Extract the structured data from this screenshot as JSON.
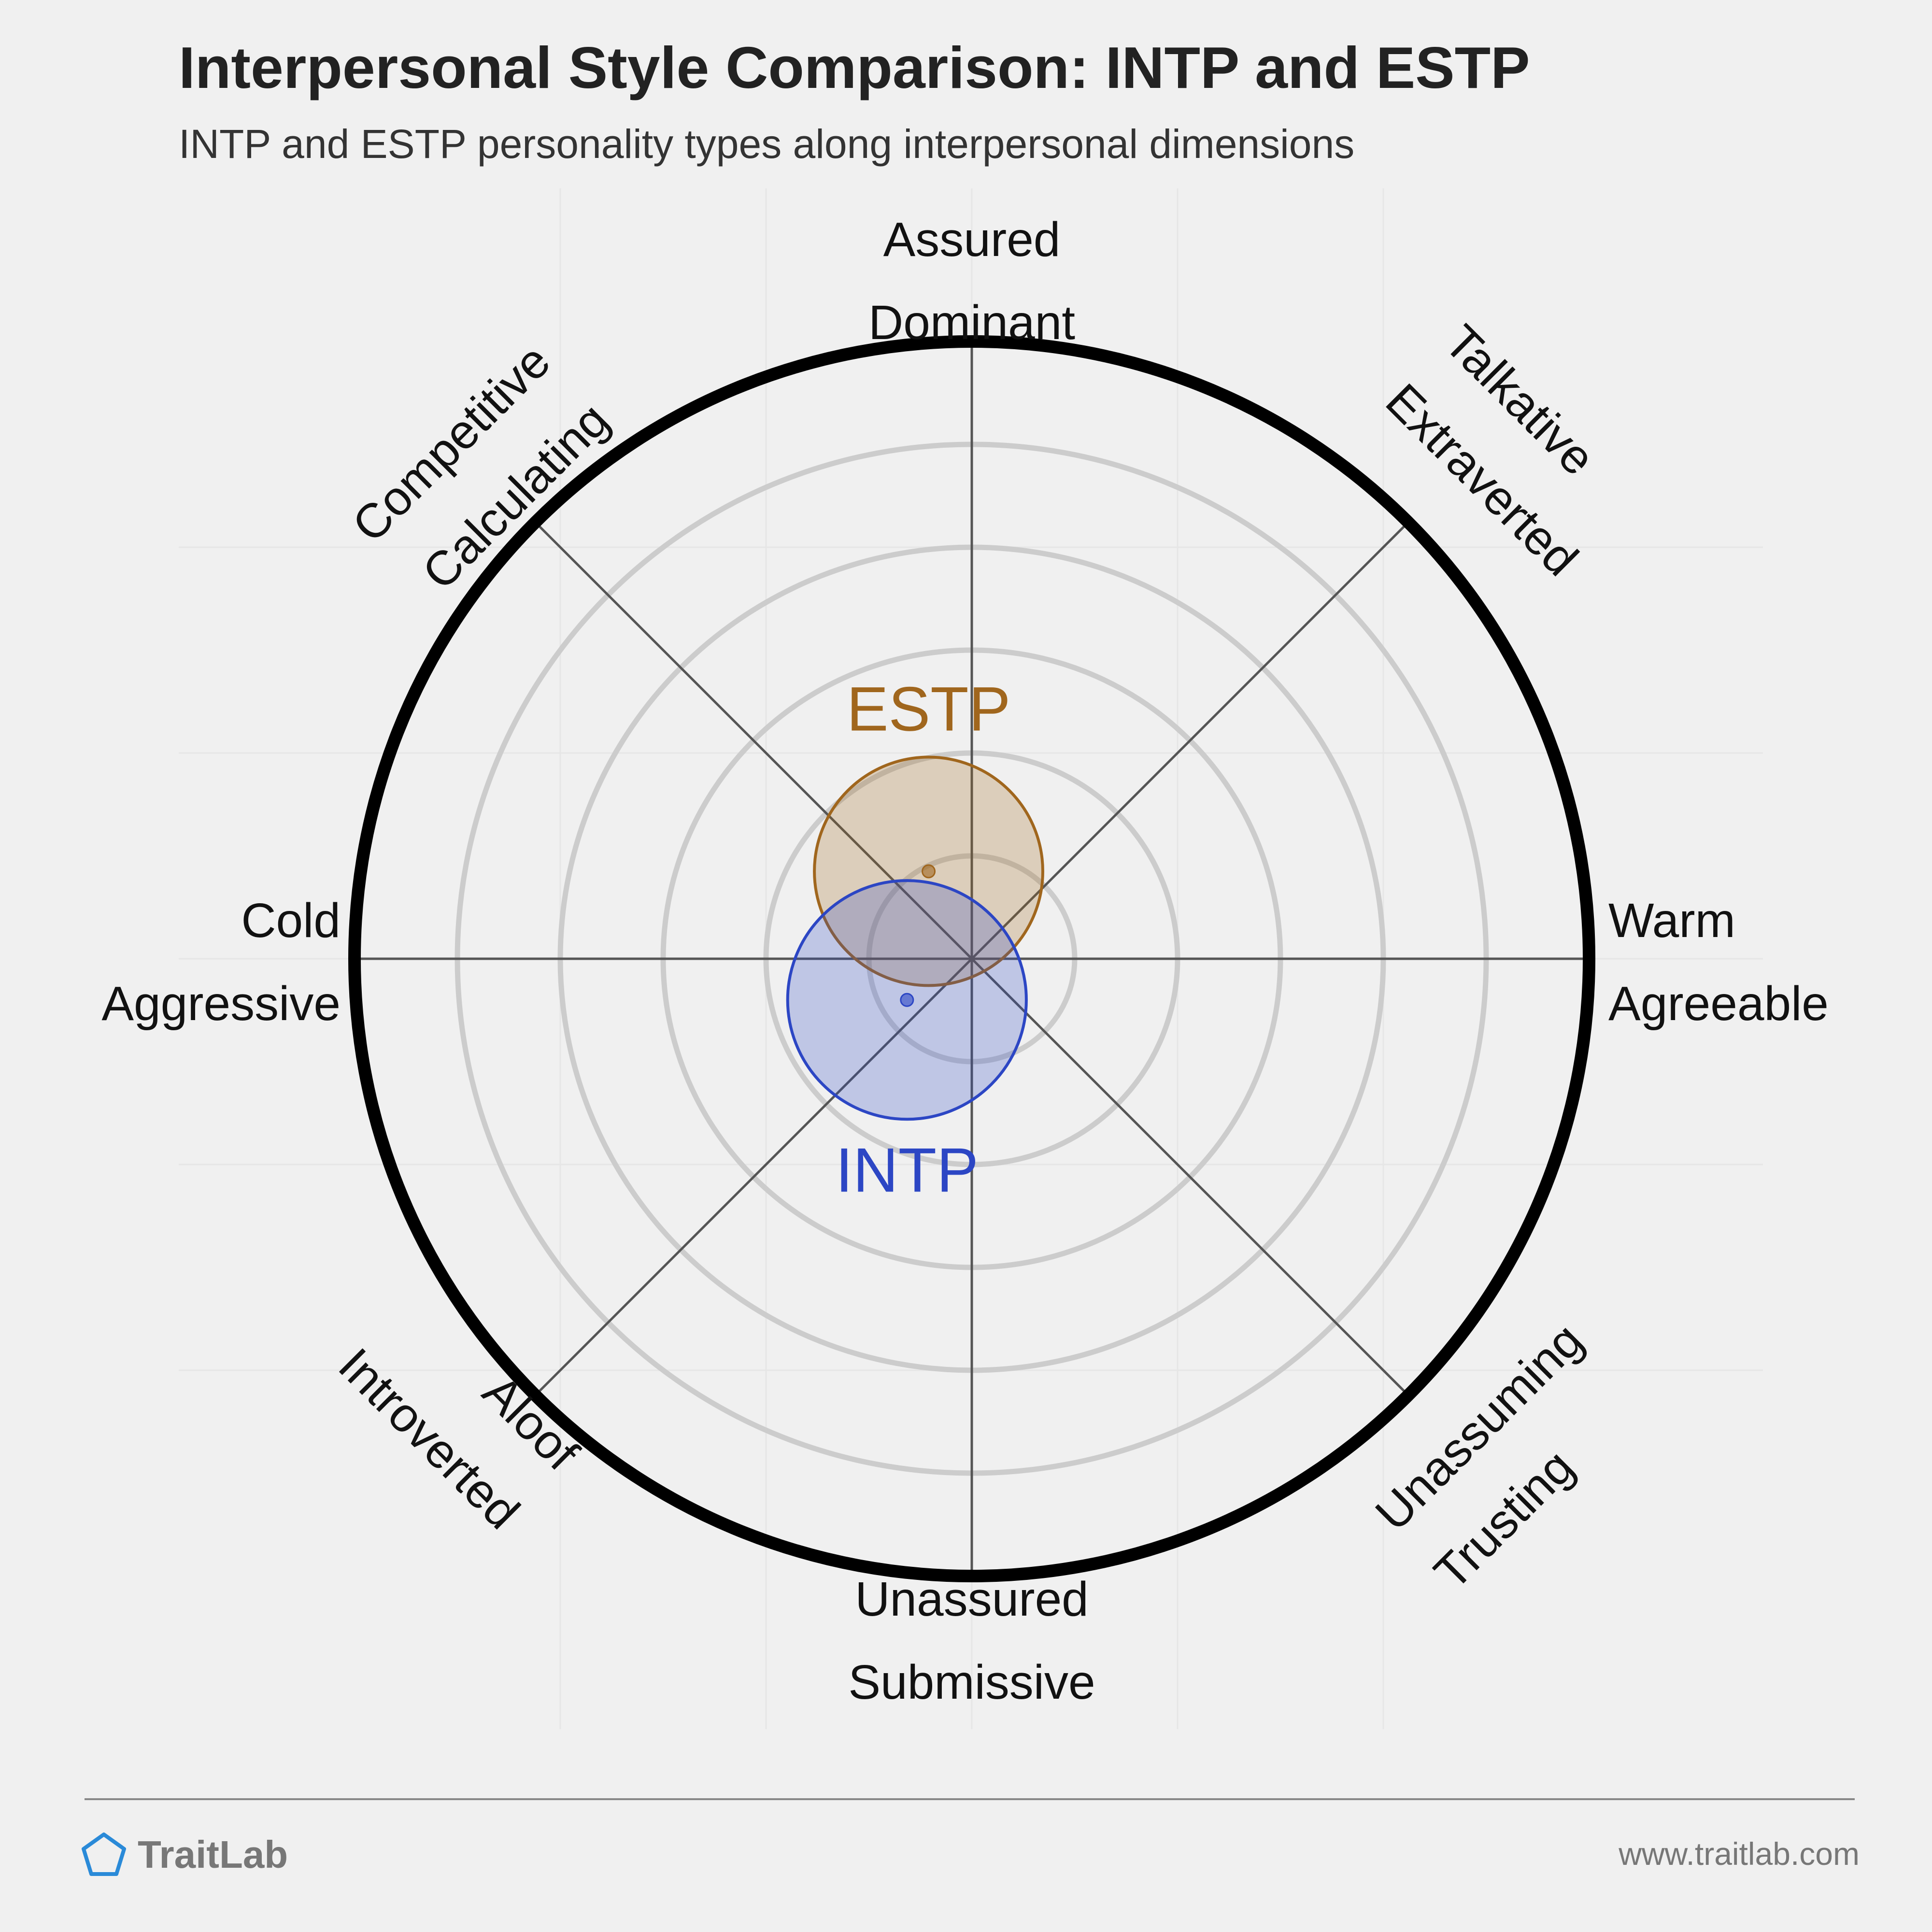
{
  "header": {
    "title": "Interpersonal Style Comparison: INTP and ESTP",
    "subtitle": "INTP and ESTP personality types along interpersonal dimensions"
  },
  "chart_data": {
    "type": "scatter",
    "title": "Interpersonal Style Comparison: INTP and ESTP",
    "subtitle": "INTP and ESTP personality types along interpersonal dimensions",
    "axes": {
      "top": [
        "Assured",
        "Dominant"
      ],
      "top_right": [
        "Talkative",
        "Extraverted"
      ],
      "right": [
        "Warm",
        "Agreeable"
      ],
      "bottom_right": [
        "Unassuming",
        "Trusting"
      ],
      "bottom": [
        "Unassured",
        "Submissive"
      ],
      "bottom_left": [
        "Aloof",
        "Introverted"
      ],
      "left": [
        "Cold",
        "Aggressive"
      ],
      "top_left": [
        "Competitive",
        "Calculating"
      ]
    },
    "xlim": [
      -6,
      6
    ],
    "ylim": [
      -6,
      6
    ],
    "rings": [
      1,
      2,
      3,
      4,
      5
    ],
    "grid": true,
    "series": [
      {
        "name": "ESTP",
        "x": -0.42,
        "y": 0.85,
        "spread": 1.11,
        "color": "#a0661d"
      },
      {
        "name": "INTP",
        "x": -0.63,
        "y": -0.4,
        "spread": 1.16,
        "color": "#2c46c4"
      }
    ]
  },
  "footer": {
    "brand": "TraitLab",
    "url": "www.traitlab.com"
  }
}
